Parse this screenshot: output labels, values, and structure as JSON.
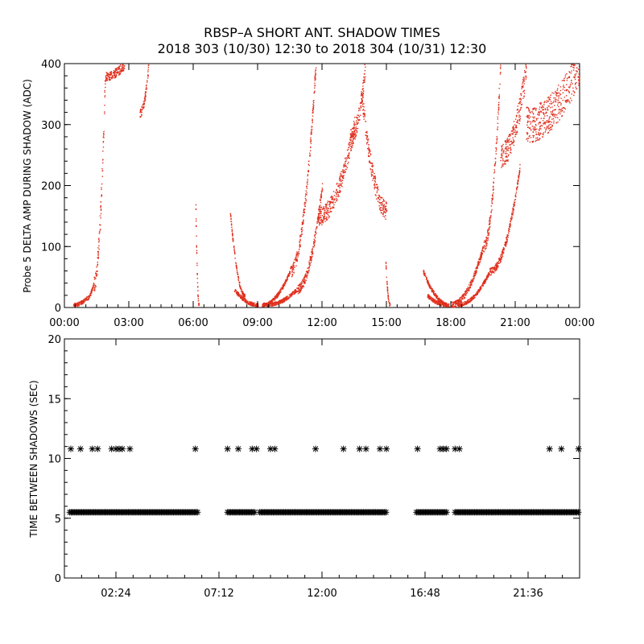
{
  "title_line1": "RBSP–A SHORT ANT. SHADOW TIMES",
  "title_line2": "2018 303 (10/30) 12:30 to 2018 304 (10/31) 12:30",
  "colors": {
    "top_points": "#e0301e",
    "bottom_points": "#000000",
    "axis": "#000000"
  },
  "chart_data": [
    {
      "type": "scatter",
      "name": "top",
      "title": "",
      "xlabel": "",
      "ylabel": "Probe 5 DELTA AMP DURING SHADOW (ADC)",
      "xlim": [
        0,
        24
      ],
      "ylim": [
        0,
        400
      ],
      "x_ticks": [
        0,
        3,
        6,
        9,
        12,
        15,
        18,
        21,
        24
      ],
      "x_tick_labels": [
        "00:00",
        "03:00",
        "06:00",
        "09:00",
        "12:00",
        "15:00",
        "18:00",
        "21:00",
        "00:00"
      ],
      "y_ticks": [
        0,
        100,
        200,
        300,
        400
      ],
      "y_tick_labels": [
        "0",
        "100",
        "200",
        "300",
        "400"
      ],
      "marker": "dot",
      "color": "#e0301e",
      "segments": [
        {
          "x_start": 0.4,
          "x_end": 1.0,
          "y_start": 5,
          "y_end": 15
        },
        {
          "x_start": 1.0,
          "x_end": 1.35,
          "y_start": 15,
          "y_end": 40
        },
        {
          "x_start": 1.35,
          "x_end": 1.9,
          "y_start": 40,
          "y_end": 400,
          "spread": 30
        },
        {
          "x_start": 1.9,
          "x_end": 2.8,
          "y_start": 380,
          "y_end": 400,
          "spread": 15
        },
        {
          "x_start": 3.5,
          "x_end": 3.9,
          "y_start": 320,
          "y_end": 395,
          "spread": 15
        },
        {
          "x_start": 6.1,
          "x_end": 6.25,
          "y_start": 170,
          "y_end": 5
        },
        {
          "x_start": 7.7,
          "x_end": 8.4,
          "y_start": 160,
          "y_end": 20
        },
        {
          "x_start": 7.9,
          "x_end": 9.0,
          "y_start": 30,
          "y_end": 5
        },
        {
          "x_start": 9.2,
          "x_end": 10.5,
          "y_start": 5,
          "y_end": 60
        },
        {
          "x_start": 10.5,
          "x_end": 11.7,
          "y_start": 60,
          "y_end": 400,
          "spread": 20
        },
        {
          "x_start": 9.4,
          "x_end": 10.8,
          "y_start": 5,
          "y_end": 30
        },
        {
          "x_start": 10.8,
          "x_end": 12.0,
          "y_start": 30,
          "y_end": 200,
          "spread": 15
        },
        {
          "x_start": 11.8,
          "x_end": 13.5,
          "y_start": 150,
          "y_end": 300,
          "spread": 30
        },
        {
          "x_start": 13.3,
          "x_end": 14.0,
          "y_start": 280,
          "y_end": 395,
          "spread": 30
        },
        {
          "x_start": 13.8,
          "x_end": 15.0,
          "y_start": 360,
          "y_end": 160,
          "spread": 30
        },
        {
          "x_start": 14.95,
          "x_end": 15.15,
          "y_start": 75,
          "y_end": 5
        },
        {
          "x_start": 16.7,
          "x_end": 17.9,
          "y_start": 60,
          "y_end": 5
        },
        {
          "x_start": 16.9,
          "x_end": 17.8,
          "y_start": 20,
          "y_end": 5
        },
        {
          "x_start": 18.0,
          "x_end": 19.5,
          "y_start": 5,
          "y_end": 100,
          "spread": 10
        },
        {
          "x_start": 19.5,
          "x_end": 20.3,
          "y_start": 100,
          "y_end": 400,
          "spread": 20
        },
        {
          "x_start": 18.3,
          "x_end": 19.8,
          "y_start": 5,
          "y_end": 60
        },
        {
          "x_start": 19.8,
          "x_end": 21.2,
          "y_start": 60,
          "y_end": 230,
          "spread": 12
        },
        {
          "x_start": 20.3,
          "x_end": 21.5,
          "y_start": 250,
          "y_end": 390,
          "spread": 40
        },
        {
          "x_start": 21.5,
          "x_end": 24.0,
          "y_start": 300,
          "y_end": 400,
          "spread": 60
        }
      ]
    },
    {
      "type": "scatter",
      "name": "bottom",
      "title": "",
      "xlabel": "",
      "ylabel": "TIME BETWEEN SHADOWS (SEC)",
      "xlim": [
        0,
        24
      ],
      "ylim": [
        0,
        20
      ],
      "x_ticks": [
        2.4,
        7.2,
        12.0,
        16.8,
        21.6
      ],
      "x_tick_labels": [
        "02:24",
        "07:12",
        "12:00",
        "16:48",
        "21:36"
      ],
      "y_ticks": [
        0,
        5,
        10,
        15,
        20
      ],
      "y_tick_labels": [
        "0",
        "5",
        "10",
        "15",
        "20"
      ],
      "marker": "asterisk",
      "color": "#000000",
      "baseline_value": 5.5,
      "baseline_ranges": [
        [
          0.25,
          6.2
        ],
        [
          7.6,
          8.9
        ],
        [
          9.1,
          15.0
        ],
        [
          16.4,
          17.8
        ],
        [
          18.2,
          23.95
        ]
      ],
      "outlier_value": 10.8,
      "outlier_x": [
        0.3,
        0.75,
        1.3,
        1.55,
        2.2,
        2.4,
        2.55,
        2.7,
        3.05,
        6.1,
        7.6,
        8.1,
        8.75,
        8.95,
        9.6,
        9.8,
        11.7,
        13.0,
        13.75,
        14.05,
        14.7,
        15.0,
        16.45,
        17.5,
        17.65,
        17.8,
        18.2,
        18.4,
        22.6,
        23.15,
        23.95
      ]
    }
  ]
}
